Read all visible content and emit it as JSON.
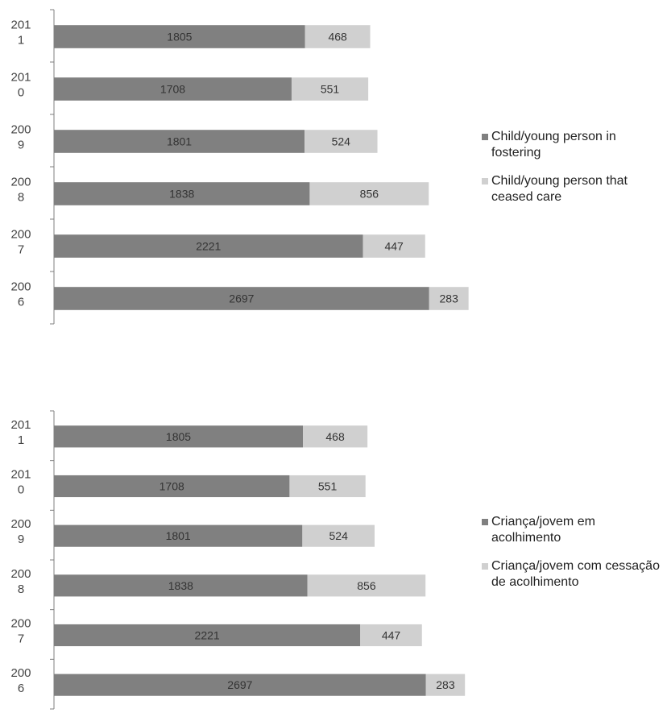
{
  "colors": {
    "series1": "#808080",
    "series2": "#d0d0d0",
    "axis": "#7f7f7f"
  },
  "chart_data": [
    {
      "type": "bar",
      "orientation": "horizontal",
      "stacked": true,
      "category_labels": [
        [
          "201",
          "1"
        ],
        [
          "201",
          "0"
        ],
        [
          "200",
          "9"
        ],
        [
          "200",
          "8"
        ],
        [
          "200",
          "7"
        ],
        [
          "200",
          "6"
        ]
      ],
      "categories": [
        "2011",
        "2010",
        "2009",
        "2008",
        "2007",
        "2006"
      ],
      "series": [
        {
          "name": "Child/young person in fostering",
          "values": [
            1805,
            1708,
            1801,
            1838,
            2221,
            2697
          ]
        },
        {
          "name": "Child/young person that ceased care",
          "values": [
            468,
            551,
            524,
            856,
            447,
            283
          ]
        }
      ],
      "legend": "right"
    },
    {
      "type": "bar",
      "orientation": "horizontal",
      "stacked": true,
      "category_labels": [
        [
          "201",
          "1"
        ],
        [
          "201",
          "0"
        ],
        [
          "200",
          "9"
        ],
        [
          "200",
          "8"
        ],
        [
          "200",
          "7"
        ],
        [
          "200",
          "6"
        ]
      ],
      "categories": [
        "2011",
        "2010",
        "2009",
        "2008",
        "2007",
        "2006"
      ],
      "series": [
        {
          "name": "Criança/jovem em acolhimento",
          "values": [
            1805,
            1708,
            1801,
            1838,
            2221,
            2697
          ]
        },
        {
          "name": "Criança/jovem com cessação de acolhimento",
          "values": [
            468,
            551,
            524,
            856,
            447,
            283
          ]
        }
      ],
      "legend": "right"
    }
  ]
}
